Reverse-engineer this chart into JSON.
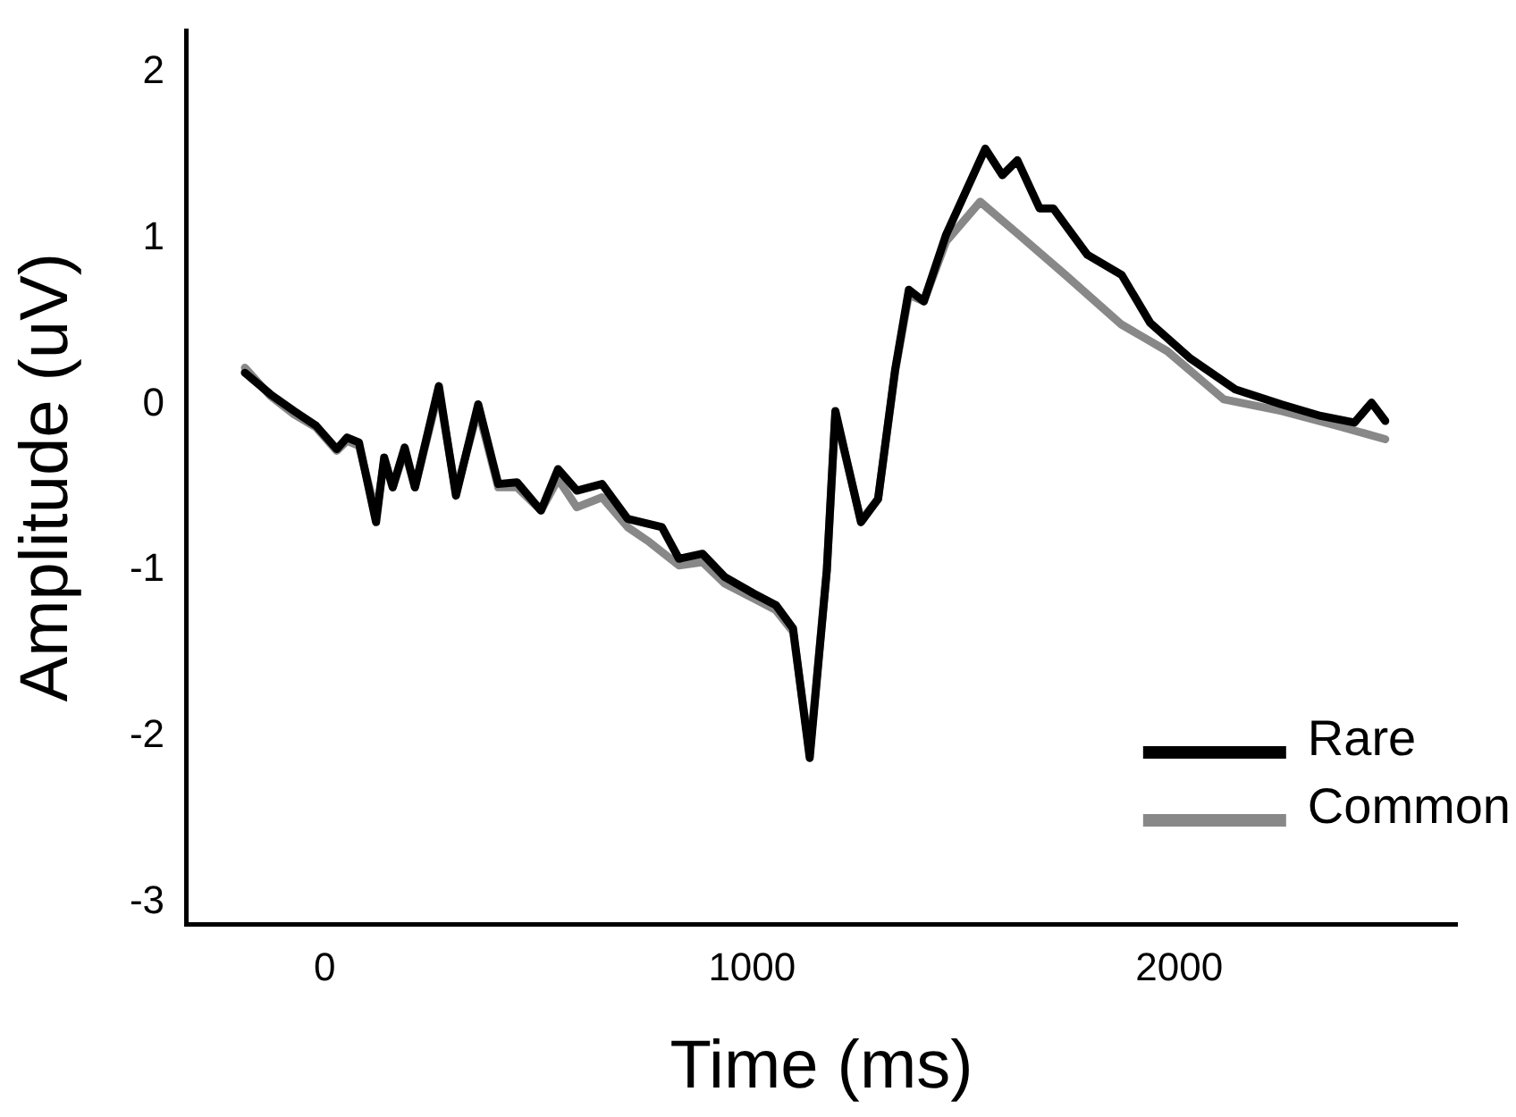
{
  "chart_data": {
    "type": "line",
    "xlabel": "Time (ms)",
    "ylabel": "Amplitude (uV)",
    "xlim": [
      -325,
      2650
    ],
    "ylim": [
      -3.13,
      2.25
    ],
    "xticks": [
      0,
      1000,
      2000
    ],
    "yticks": [
      -3,
      -2,
      -1,
      0,
      1,
      2
    ],
    "grid": false,
    "legend": "bottom right",
    "marker": "none",
    "line_style": "solid",
    "series": [
      {
        "name": "Rare",
        "color": "#000000",
        "x": [
          -187,
          -127,
          -72,
          -20,
          28,
          52,
          80,
          120,
          139,
          159,
          187,
          211,
          267,
          307,
          359,
          406,
          450,
          506,
          546,
          590,
          649,
          709,
          789,
          829,
          884,
          936,
          1004,
          1056,
          1096,
          1135,
          1175,
          1195,
          1255,
          1295,
          1335,
          1367,
          1402,
          1454,
          1546,
          1586,
          1621,
          1673,
          1705,
          1785,
          1865,
          1932,
          2024,
          2131,
          2239,
          2331,
          2410,
          2450,
          2482
        ],
        "values": [
          0.19,
          0.06,
          -0.04,
          -0.13,
          -0.27,
          -0.2,
          -0.23,
          -0.71,
          -0.32,
          -0.5,
          -0.26,
          -0.5,
          0.11,
          -0.55,
          0.0,
          -0.48,
          -0.47,
          -0.64,
          -0.39,
          -0.52,
          -0.48,
          -0.69,
          -0.74,
          -0.93,
          -0.9,
          -1.04,
          -1.14,
          -1.21,
          -1.35,
          -2.13,
          -1.0,
          -0.04,
          -0.71,
          -0.57,
          0.21,
          0.69,
          0.62,
          1.02,
          1.54,
          1.38,
          1.47,
          1.18,
          1.18,
          0.9,
          0.78,
          0.49,
          0.28,
          0.09,
          0.0,
          -0.07,
          -0.11,
          0.01,
          -0.1
        ]
      },
      {
        "name": "Common",
        "color": "#888888",
        "x": [
          -187,
          -127,
          -72,
          -20,
          28,
          52,
          80,
          120,
          139,
          159,
          187,
          211,
          267,
          307,
          359,
          406,
          450,
          506,
          546,
          590,
          649,
          709,
          760,
          829,
          884,
          936,
          1004,
          1056,
          1096,
          1135,
          1175,
          1195,
          1255,
          1295,
          1335,
          1367,
          1402,
          1454,
          1534,
          1625,
          1733,
          1865,
          1972,
          2104,
          2239,
          2371,
          2482
        ],
        "values": [
          0.22,
          0.05,
          -0.06,
          -0.14,
          -0.28,
          -0.22,
          -0.25,
          -0.66,
          -0.34,
          -0.5,
          -0.28,
          -0.5,
          0.08,
          -0.53,
          -0.03,
          -0.5,
          -0.5,
          -0.64,
          -0.45,
          -0.62,
          -0.56,
          -0.74,
          -0.83,
          -0.97,
          -0.95,
          -1.08,
          -1.17,
          -1.24,
          -1.37,
          -2.1,
          -1.0,
          -0.06,
          -0.7,
          -0.57,
          0.2,
          0.66,
          0.62,
          0.98,
          1.22,
          1.02,
          0.78,
          0.48,
          0.32,
          0.03,
          -0.04,
          -0.13,
          -0.21
        ]
      }
    ]
  }
}
